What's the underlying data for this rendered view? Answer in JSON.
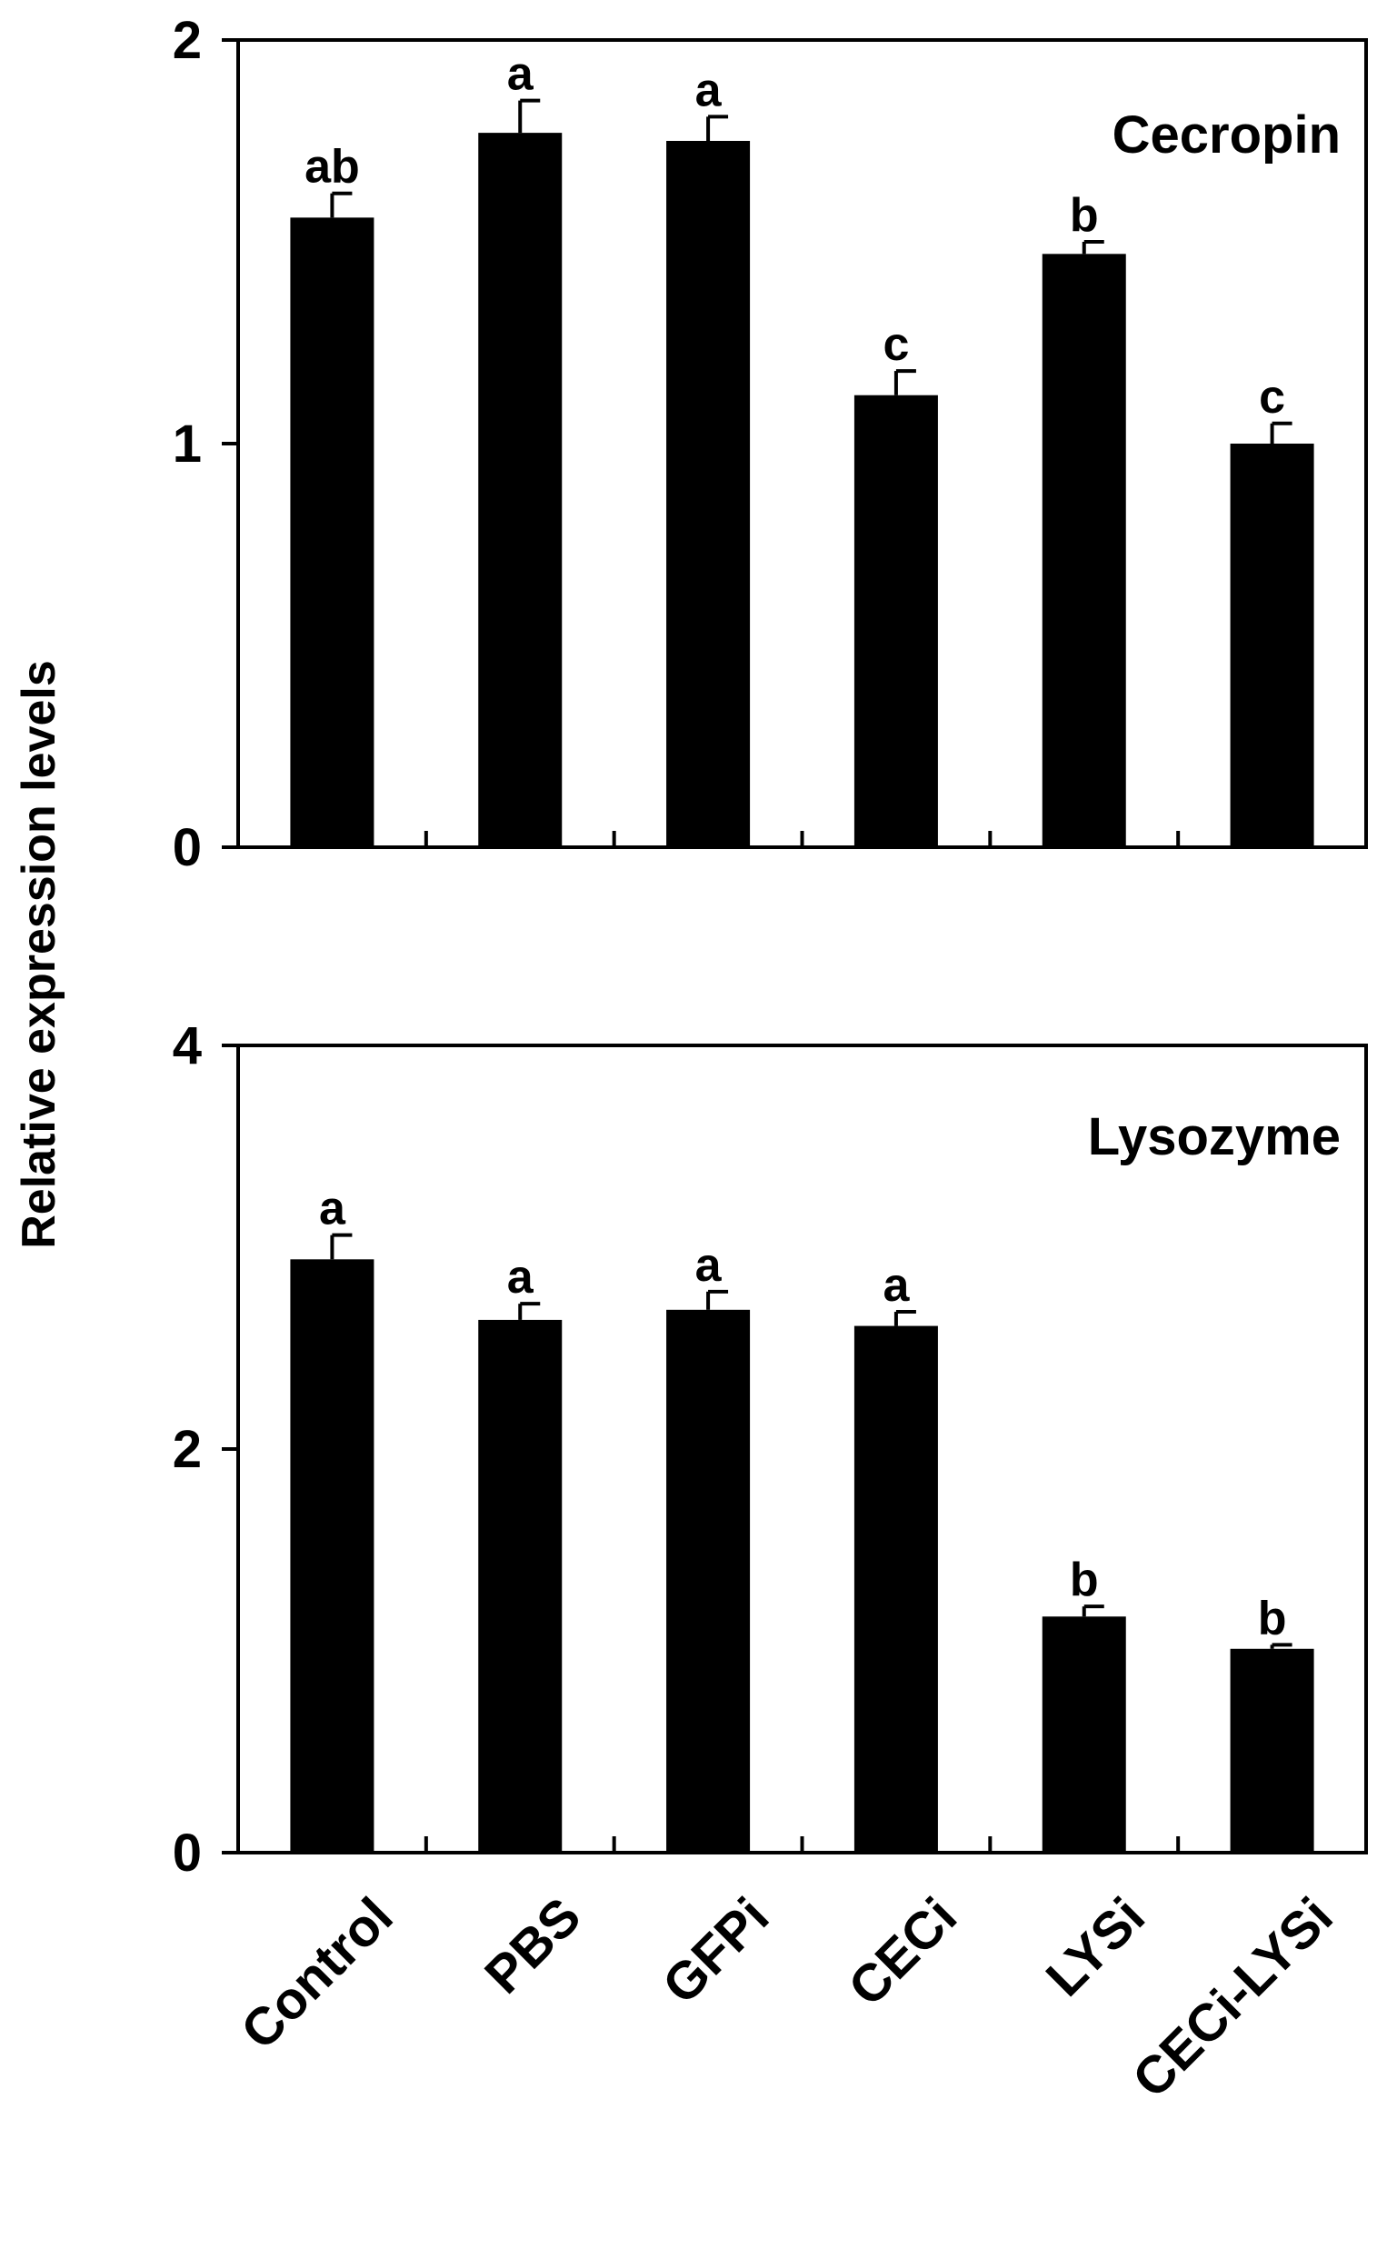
{
  "ylabel": "Relative expression levels",
  "chart_data": [
    {
      "type": "bar",
      "title": "Cecropin",
      "categories": [
        "Control",
        "PBS",
        "GFPi",
        "CECi",
        "LYSi",
        "CECi-LYSi"
      ],
      "values": [
        1.56,
        1.77,
        1.75,
        1.12,
        1.47,
        1.0
      ],
      "errors": [
        0.06,
        0.08,
        0.06,
        0.06,
        0.03,
        0.05
      ],
      "letters": [
        "ab",
        "a",
        "a",
        "c",
        "b",
        "c"
      ],
      "ylim": [
        0,
        2
      ],
      "yticks": [
        0,
        1,
        2
      ],
      "bar_color": "#000000"
    },
    {
      "type": "bar",
      "title": "Lysozyme",
      "categories": [
        "Control",
        "PBS",
        "GFPi",
        "CECi",
        "LYSi",
        "CECi-LYSi"
      ],
      "values": [
        2.94,
        2.64,
        2.69,
        2.61,
        1.17,
        1.01
      ],
      "errors": [
        0.12,
        0.08,
        0.09,
        0.07,
        0.05,
        0.02
      ],
      "letters": [
        "a",
        "a",
        "a",
        "a",
        "b",
        "b"
      ],
      "ylim": [
        0,
        4
      ],
      "yticks": [
        0,
        2,
        4
      ],
      "bar_color": "#000000"
    }
  ]
}
